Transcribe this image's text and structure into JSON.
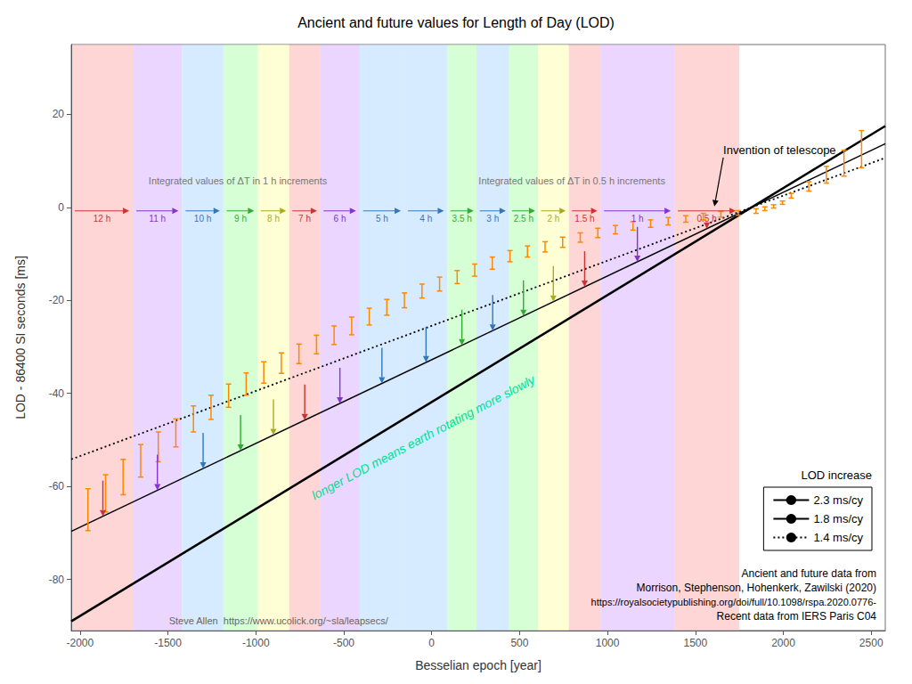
{
  "chart_data": {
    "type": "line",
    "title": "Ancient and future values for Length of Day (LOD)",
    "xlabel": "Besselian epoch [year]",
    "ylabel": "LOD - 86400 SI seconds [ms]",
    "xlim": [
      -2050,
      2580
    ],
    "ylim": [
      -91,
      35
    ],
    "xticks": [
      -2000,
      -1500,
      -1000,
      -500,
      0,
      500,
      1000,
      1500,
      2000,
      2500
    ],
    "yticks": [
      -80,
      -60,
      -40,
      -20,
      0,
      20
    ],
    "grid": false,
    "legend": "lower right",
    "legend_title": "LOD increase",
    "series": [
      {
        "name": "2.3 ms/cy",
        "color": "#000000",
        "line_style": "solid",
        "x": [
          -2050,
          2580
        ],
        "values": [
          -89.01,
          17.48
        ]
      },
      {
        "name": "1.8 ms/cy",
        "color": "#000000",
        "line_style": "solid",
        "x": [
          -2050,
          2580
        ],
        "values": [
          -69.66,
          13.68
        ]
      },
      {
        "name": "1.4 ms/cy",
        "color": "#000000",
        "line_style": "dotted",
        "x": [
          -2050,
          2580
        ],
        "values": [
          -54.18,
          10.64
        ]
      }
    ],
    "error_bars": {
      "color": "#FF8800",
      "x": [
        -1955,
        -1855,
        -1755,
        -1655,
        -1555,
        -1455,
        -1355,
        -1255,
        -1155,
        -1055,
        -955,
        -855,
        -755,
        -655,
        -555,
        -455,
        -355,
        -255,
        -155,
        -55,
        45,
        145,
        245,
        345,
        445,
        545,
        645,
        745,
        845,
        945,
        1045,
        1145,
        1245,
        1345,
        1445,
        1545,
        1645,
        1745,
        1845,
        1895,
        1945,
        1995,
        2045,
        2145,
        2245,
        2345,
        2445
      ],
      "values": [
        -65.0,
        -61.5,
        -58.0,
        -54.5,
        -51.5,
        -48.5,
        -45.5,
        -43.0,
        -40.5,
        -38.0,
        -35.5,
        -33.5,
        -31.5,
        -29.5,
        -27.5,
        -25.5,
        -23.5,
        -21.5,
        -20.0,
        -18.0,
        -16.5,
        -15.0,
        -13.5,
        -12.0,
        -10.5,
        -9.5,
        -8.5,
        -7.5,
        -6.5,
        -5.5,
        -4.8,
        -4.0,
        -3.5,
        -3.0,
        -2.5,
        -2.0,
        -1.5,
        -1.2,
        -0.8,
        -0.3,
        0.2,
        1.0,
        2.5,
        4.5,
        7.0,
        9.5,
        12.5
      ],
      "yerr": [
        4.5,
        4.0,
        3.8,
        3.5,
        3.2,
        3.0,
        2.8,
        2.6,
        2.5,
        2.4,
        2.3,
        2.2,
        2.1,
        2.0,
        2.0,
        1.9,
        1.8,
        1.7,
        1.6,
        1.5,
        1.5,
        1.4,
        1.3,
        1.3,
        1.2,
        1.2,
        1.1,
        1.1,
        1.0,
        1.0,
        0.9,
        0.9,
        0.8,
        0.8,
        0.7,
        0.7,
        0.6,
        0.5,
        0.5,
        0.4,
        0.35,
        0.35,
        0.5,
        1.0,
        1.8,
        2.8,
        4.0
      ]
    },
    "band_groups": [
      {
        "text": "Integrated values of ΔT in 1 h increments",
        "bands": [
          {
            "label": "12 h",
            "color": "#ffbbbb",
            "label_color": "#cc3333",
            "x0": -2050,
            "x1": -1700,
            "arrow_x": -1870,
            "arrow_y": -66.42
          },
          {
            "label": "11 h",
            "color": "#ddbbff",
            "label_color": "#8833cc",
            "x0": -1700,
            "x1": -1420,
            "arrow_x": -1560,
            "arrow_y": -60.84
          },
          {
            "label": "10 h",
            "color": "#bbddff",
            "label_color": "#3377bb",
            "x0": -1420,
            "x1": -1185,
            "arrow_x": -1300,
            "arrow_y": -56.16
          },
          {
            "label": "9 h",
            "color": "#bbffbb",
            "label_color": "#33aa33",
            "x0": -1185,
            "x1": -990,
            "arrow_x": -1087,
            "arrow_y": -52.326
          },
          {
            "label": "8 h",
            "color": "#ffffbb",
            "label_color": "#aaaa22",
            "x0": -990,
            "x1": -810,
            "arrow_x": -900,
            "arrow_y": -48.96
          },
          {
            "label": "7 h",
            "color": "#ffbbbb",
            "label_color": "#cc3333",
            "x0": -810,
            "x1": -635,
            "arrow_x": -722,
            "arrow_y": -45.756
          },
          {
            "label": "6 h",
            "color": "#ddbbff",
            "label_color": "#8833cc",
            "x0": -635,
            "x1": -410,
            "arrow_x": -522,
            "arrow_y": -42.156
          },
          {
            "label": "5 h",
            "color": "#bbddff",
            "label_color": "#3377bb",
            "x0": -410,
            "x1": -155,
            "arrow_x": -283,
            "arrow_y": -37.854
          }
        ]
      },
      {
        "text": "Integrated values of ΔT in 0.5 h increments",
        "bands": [
          {
            "label": "4 h",
            "color": "#bbddff",
            "label_color": "#3377bb",
            "x0": -155,
            "x1": 90,
            "arrow_x": -32,
            "arrow_y": -33.336
          },
          {
            "label": "3.5 h",
            "color": "#bbffbb",
            "label_color": "#33aa33",
            "x0": 90,
            "x1": 255,
            "arrow_x": 172,
            "arrow_y": -29.664
          },
          {
            "label": "3 h",
            "color": "#bbddff",
            "label_color": "#3377bb",
            "x0": 255,
            "x1": 440,
            "arrow_x": 347,
            "arrow_y": -26.514
          },
          {
            "label": "2.5 h",
            "color": "#bbffbb",
            "label_color": "#33aa33",
            "x0": 440,
            "x1": 605,
            "arrow_x": 522,
            "arrow_y": -23.364
          },
          {
            "label": "2 h",
            "color": "#ffffbb",
            "label_color": "#aaaa22",
            "x0": 605,
            "x1": 780,
            "arrow_x": 692,
            "arrow_y": -20.304
          },
          {
            "label": "1.5 h",
            "color": "#ffbbbb",
            "label_color": "#cc3333",
            "x0": 780,
            "x1": 960,
            "arrow_x": 870,
            "arrow_y": -17.1
          },
          {
            "label": "1 h",
            "color": "#ddbbff",
            "label_color": "#8833cc",
            "x0": 960,
            "x1": 1380,
            "arrow_x": 1170,
            "arrow_y": -11.7
          },
          {
            "label": "0.5 h",
            "color": "#ffbbbb",
            "label_color": "#cc3333",
            "x0": 1380,
            "x1": 1750,
            "arrow_x": 1565,
            "arrow_y": -4.59
          }
        ]
      }
    ],
    "telescope": {
      "text": "Invention of telescope",
      "x": 1608,
      "y": 0.2
    },
    "annotations": [
      {
        "text": "longer LOD means earth rotating more slowly",
        "color": "#00dd99"
      }
    ],
    "credits": [
      "Ancient and future data from",
      "Morrison, Stephenson, Hohenkerk, Zawilski (2020)",
      "https://royalsocietypublishing.org/doi/full/10.1098/rspa.2020.0776-",
      "Recent data from IERS Paris C04"
    ],
    "footnote": "Steve Allen  https://www.ucolick.org/~sla/leapsecs/"
  }
}
